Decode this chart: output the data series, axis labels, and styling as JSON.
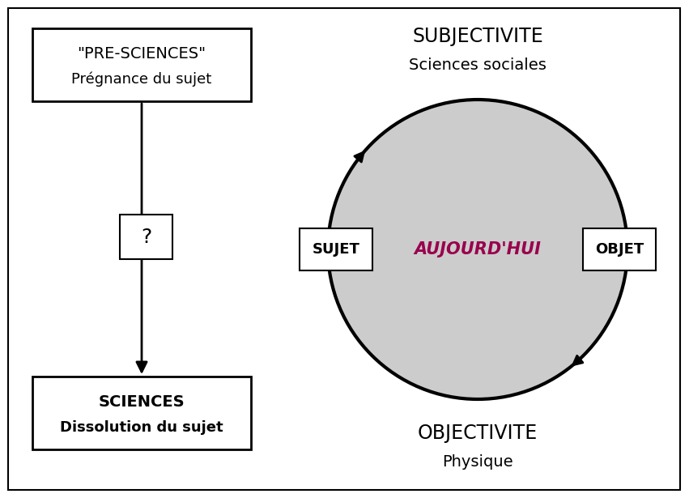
{
  "bg_color": "#ffffff",
  "border_color": "#000000",
  "left_box1_text1": "\"PRE-SCIENCES\"",
  "left_box1_text2": "Prégnance du sujet",
  "left_box2_text": "?",
  "left_box3_text1": "SCIENCES",
  "left_box3_text2": "Dissolution du sujet",
  "top_right_text1": "SUBJECTIVITE",
  "top_right_text2": "Sciences sociales",
  "bottom_right_text1": "OBJECTIVITE",
  "bottom_right_text2": "Physique",
  "sujet_label": "SUJET",
  "objet_label": "OBJET",
  "aujourd_hui_label": "AUJOURD'HUI",
  "ellipse_color": "#cccccc",
  "ellipse_edge_color": "#000000",
  "text_color_main": "#000000",
  "text_color_aujourdhui": "#99004d",
  "arrow_color": "#000000",
  "figw": 8.51,
  "figh": 6.15
}
